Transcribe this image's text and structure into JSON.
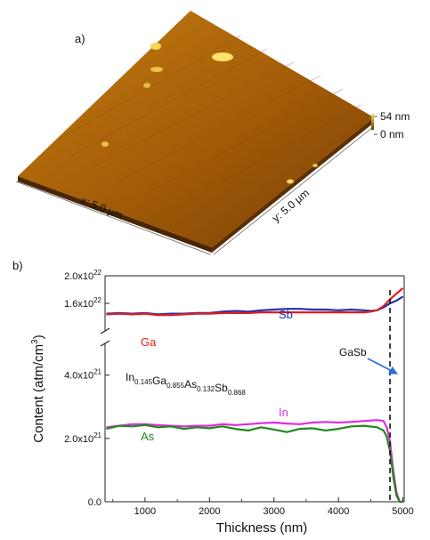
{
  "panel_a": {
    "label": "a)",
    "scale_top": "54 nm",
    "scale_bottom": "0 nm",
    "x_axis_label": "x: 5.0 µm",
    "y_axis_label": "y: 5.0 µm"
  },
  "chart_data": {
    "type": "line",
    "panel_label": "b)",
    "xlabel": "Thickness (nm)",
    "ylabel_main": "Content (atm/cm",
    "ylabel_sup": "3",
    "ylabel_end": ")",
    "xlim": [
      380,
      5020
    ],
    "x_ticks": [
      1000,
      2000,
      3000,
      4000,
      5000
    ],
    "x_tick_labels": [
      "1000",
      "2000",
      "3000",
      "4000",
      "5000"
    ],
    "y_axis_broken": true,
    "y_lower_range": [
      0,
      5e+21
    ],
    "y_upper_range": [
      1.2e+22,
      2e+22
    ],
    "y_ticks": [
      {
        "value": 0,
        "mantissa": "0.0",
        "exp": ""
      },
      {
        "value": 2e+21,
        "mantissa": "2.0x10",
        "exp": "21"
      },
      {
        "value": 4e+21,
        "mantissa": "4.0x10",
        "exp": "21"
      },
      {
        "value": 1.6e+22,
        "mantissa": "1.6x10",
        "exp": "22"
      },
      {
        "value": 2e+22,
        "mantissa": "2.0x10",
        "exp": "22"
      }
    ],
    "formula": [
      {
        "el": "In",
        "sub": "0.145"
      },
      {
        "el": "Ga",
        "sub": "0.855"
      },
      {
        "el": "As",
        "sub": "0.132"
      },
      {
        "el": "Sb",
        "sub": "0.868"
      }
    ],
    "annotation": {
      "text": "GaSb",
      "x": 4800
    },
    "interface_x": 4800,
    "series": [
      {
        "name": "Sb",
        "color": "#1f2fb8",
        "x": [
          400,
          600,
          800,
          1000,
          1200,
          1400,
          1600,
          1800,
          2000,
          2200,
          2400,
          2600,
          2800,
          3000,
          3200,
          3400,
          3600,
          3800,
          4000,
          4200,
          4400,
          4500,
          4600,
          4700,
          4800,
          4900,
          5000
        ],
        "y": [
          1.45e+22,
          1.46e+22,
          1.45e+22,
          1.46e+22,
          1.44e+22,
          1.45e+22,
          1.45e+22,
          1.46e+22,
          1.46e+22,
          1.48e+22,
          1.49e+22,
          1.48e+22,
          1.5e+22,
          1.51e+22,
          1.52e+22,
          1.52e+22,
          1.51e+22,
          1.51e+22,
          1.5e+22,
          1.51e+22,
          1.5e+22,
          1.49e+22,
          1.5e+22,
          1.54e+22,
          1.6e+22,
          1.64e+22,
          1.7e+22
        ]
      },
      {
        "name": "Ga",
        "color": "#e01d1d",
        "x": [
          400,
          600,
          800,
          1000,
          1200,
          1400,
          1600,
          1800,
          2000,
          2200,
          2400,
          2600,
          2800,
          3000,
          3200,
          3400,
          3600,
          3800,
          4000,
          4200,
          4400,
          4500,
          4600,
          4700,
          4800,
          4900,
          5000
        ],
        "y": [
          1.44e+22,
          1.45e+22,
          1.44e+22,
          1.45e+22,
          1.43e+22,
          1.43e+22,
          1.44e+22,
          1.45e+22,
          1.45e+22,
          1.46e+22,
          1.46e+22,
          1.46e+22,
          1.47e+22,
          1.47e+22,
          1.47e+22,
          1.47e+22,
          1.47e+22,
          1.47e+22,
          1.47e+22,
          1.47e+22,
          1.47e+22,
          1.48e+22,
          1.5e+22,
          1.56e+22,
          1.66e+22,
          1.74e+22,
          1.82e+22
        ]
      },
      {
        "name": "In",
        "color": "#e02adc",
        "x": [
          400,
          600,
          800,
          1000,
          1200,
          1400,
          1600,
          1800,
          2000,
          2200,
          2400,
          2600,
          2800,
          3000,
          3200,
          3400,
          3600,
          3800,
          4000,
          4200,
          4400,
          4600,
          4700,
          4750,
          4800,
          4850,
          4900,
          4950,
          5000
        ],
        "y": [
          2.35e+21,
          2.4e+21,
          2.45e+21,
          2.45e+21,
          2.42e+21,
          2.4e+21,
          2.38e+21,
          2.4e+21,
          2.4e+21,
          2.45e+21,
          2.42e+21,
          2.45e+21,
          2.48e+21,
          2.5e+21,
          2.47e+21,
          2.45e+21,
          2.5e+21,
          2.52e+21,
          2.5e+21,
          2.52e+21,
          2.55e+21,
          2.58e+21,
          2.55e+21,
          2.35e+21,
          1.9e+21,
          1e+21,
          3e+20,
          0,
          0
        ]
      },
      {
        "name": "As",
        "color": "#1f8a1f",
        "x": [
          400,
          600,
          800,
          1000,
          1200,
          1400,
          1600,
          1800,
          2000,
          2200,
          2400,
          2600,
          2800,
          3000,
          3200,
          3400,
          3600,
          3800,
          4000,
          4200,
          4400,
          4600,
          4700,
          4750,
          4800,
          4850,
          4900,
          4950,
          5000
        ],
        "y": [
          2.3e+21,
          2.4e+21,
          2.38e+21,
          2.42e+21,
          2.35e+21,
          2.38e+21,
          2.3e+21,
          2.35e+21,
          2.32e+21,
          2.38e+21,
          2.3e+21,
          2.25e+21,
          2.35e+21,
          2.28e+21,
          2.2e+21,
          2.3e+21,
          2.32e+21,
          2.25e+21,
          2.3e+21,
          2.38e+21,
          2.4e+21,
          2.35e+21,
          2.25e+21,
          2.05e+21,
          1.6e+21,
          8e+20,
          2e+20,
          0,
          0
        ]
      }
    ]
  }
}
